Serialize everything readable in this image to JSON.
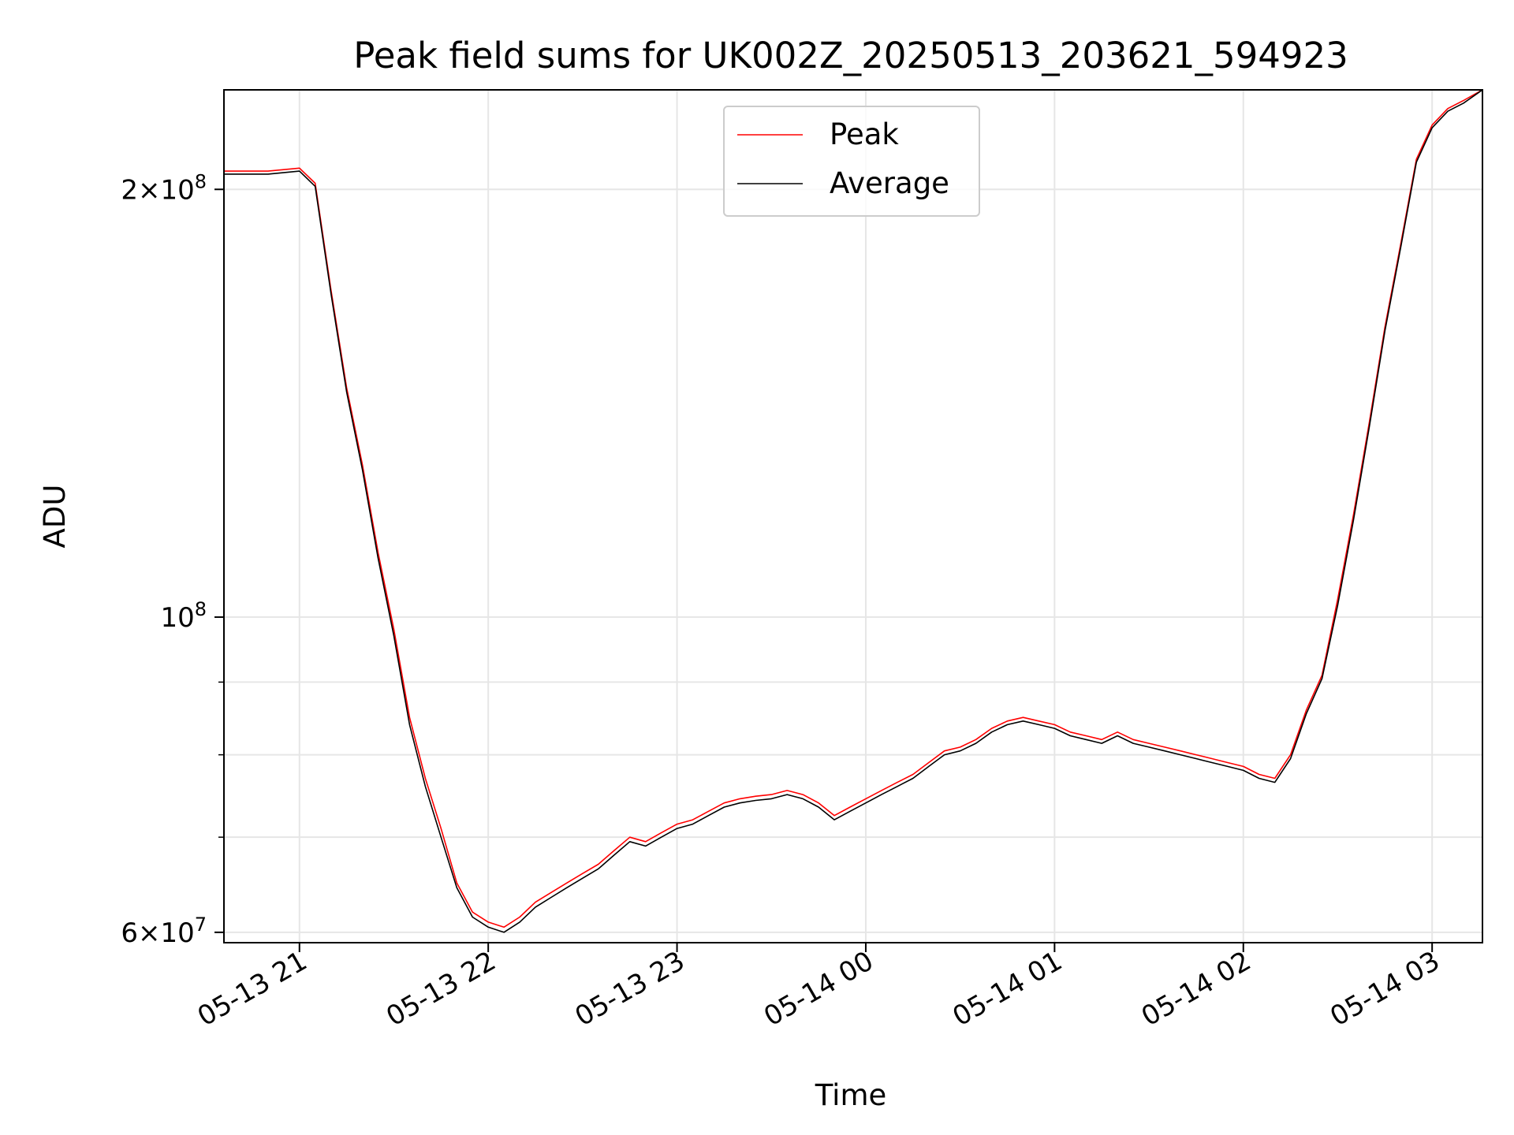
{
  "chart_data": {
    "type": "line",
    "title": "Peak field sums for UK002Z_20250513_203621_594923",
    "xlabel": "Time",
    "ylabel": "ADU",
    "yscale": "log",
    "ylim": [
      59000000,
      235000000
    ],
    "xlim": [
      "2025-05-13 20:36",
      "2025-05-14 03:16"
    ],
    "grid": true,
    "legend_position": "top-center",
    "x_ticks": [
      "2025-05-13 21:00",
      "2025-05-13 22:00",
      "2025-05-13 23:00",
      "2025-05-14 00:00",
      "2025-05-14 01:00",
      "2025-05-14 02:00",
      "2025-05-14 03:00"
    ],
    "x_tick_labels": [
      "05-13 21",
      "05-13 22",
      "05-13 23",
      "05-14 00",
      "05-14 01",
      "05-14 02",
      "05-14 03"
    ],
    "y_major_ticks": [
      60000000,
      100000000,
      200000000
    ],
    "y_minor_ticks": [
      70000000,
      80000000,
      90000000
    ],
    "series": [
      {
        "name": "Peak",
        "color": "#ff0000",
        "x": [
          "2025-05-13 20:36",
          "2025-05-13 20:50",
          "2025-05-13 21:00",
          "2025-05-13 21:05",
          "2025-05-13 21:10",
          "2025-05-13 21:15",
          "2025-05-13 21:20",
          "2025-05-13 21:25",
          "2025-05-13 21:30",
          "2025-05-13 21:35",
          "2025-05-13 21:40",
          "2025-05-13 21:45",
          "2025-05-13 21:50",
          "2025-05-13 21:55",
          "2025-05-13 22:00",
          "2025-05-13 22:05",
          "2025-05-13 22:10",
          "2025-05-13 22:15",
          "2025-05-13 22:20",
          "2025-05-13 22:25",
          "2025-05-13 22:30",
          "2025-05-13 22:35",
          "2025-05-13 22:40",
          "2025-05-13 22:45",
          "2025-05-13 22:50",
          "2025-05-13 22:55",
          "2025-05-13 23:00",
          "2025-05-13 23:05",
          "2025-05-13 23:10",
          "2025-05-13 23:15",
          "2025-05-13 23:20",
          "2025-05-13 23:25",
          "2025-05-13 23:30",
          "2025-05-13 23:35",
          "2025-05-13 23:40",
          "2025-05-13 23:45",
          "2025-05-13 23:50",
          "2025-05-13 23:55",
          "2025-05-14 00:00",
          "2025-05-14 00:05",
          "2025-05-14 00:10",
          "2025-05-14 00:15",
          "2025-05-14 00:20",
          "2025-05-14 00:25",
          "2025-05-14 00:30",
          "2025-05-14 00:35",
          "2025-05-14 00:40",
          "2025-05-14 00:45",
          "2025-05-14 00:50",
          "2025-05-14 00:55",
          "2025-05-14 01:00",
          "2025-05-14 01:05",
          "2025-05-14 01:10",
          "2025-05-14 01:15",
          "2025-05-14 01:20",
          "2025-05-14 01:25",
          "2025-05-14 01:30",
          "2025-05-14 01:35",
          "2025-05-14 01:40",
          "2025-05-14 01:45",
          "2025-05-14 01:50",
          "2025-05-14 01:55",
          "2025-05-14 02:00",
          "2025-05-14 02:05",
          "2025-05-14 02:10",
          "2025-05-14 02:15",
          "2025-05-14 02:20",
          "2025-05-14 02:25",
          "2025-05-14 02:30",
          "2025-05-14 02:35",
          "2025-05-14 02:40",
          "2025-05-14 02:45",
          "2025-05-14 02:50",
          "2025-05-14 02:55",
          "2025-05-14 03:00",
          "2025-05-14 03:05",
          "2025-05-14 03:10",
          "2025-05-14 03:16"
        ],
        "values": [
          206000000,
          206000000,
          207000000,
          202000000,
          170000000,
          145000000,
          128000000,
          111000000,
          98000000,
          85000000,
          77000000,
          71000000,
          65000000,
          62000000,
          61000000,
          60500000,
          61500000,
          63000000,
          64000000,
          65000000,
          66000000,
          67000000,
          68500000,
          70000000,
          69500000,
          70500000,
          71500000,
          72000000,
          73000000,
          74000000,
          74500000,
          74800000,
          75000000,
          75500000,
          75000000,
          74000000,
          72500000,
          73500000,
          74500000,
          75500000,
          76500000,
          77500000,
          79000000,
          80500000,
          81000000,
          82000000,
          83500000,
          84500000,
          85000000,
          84500000,
          84000000,
          83000000,
          82500000,
          82000000,
          83000000,
          82000000,
          81500000,
          81000000,
          80500000,
          80000000,
          79500000,
          79000000,
          78500000,
          77500000,
          77000000,
          80000000,
          86000000,
          91000000,
          103000000,
          118000000,
          137000000,
          160000000,
          183000000,
          210000000,
          222000000,
          228000000,
          231000000,
          235000000
        ]
      },
      {
        "name": "Average",
        "color": "#000000",
        "x": [
          "2025-05-13 20:36",
          "2025-05-13 20:50",
          "2025-05-13 21:00",
          "2025-05-13 21:05",
          "2025-05-13 21:10",
          "2025-05-13 21:15",
          "2025-05-13 21:20",
          "2025-05-13 21:25",
          "2025-05-13 21:30",
          "2025-05-13 21:35",
          "2025-05-13 21:40",
          "2025-05-13 21:45",
          "2025-05-13 21:50",
          "2025-05-13 21:55",
          "2025-05-13 22:00",
          "2025-05-13 22:05",
          "2025-05-13 22:10",
          "2025-05-13 22:15",
          "2025-05-13 22:20",
          "2025-05-13 22:25",
          "2025-05-13 22:30",
          "2025-05-13 22:35",
          "2025-05-13 22:40",
          "2025-05-13 22:45",
          "2025-05-13 22:50",
          "2025-05-13 22:55",
          "2025-05-13 23:00",
          "2025-05-13 23:05",
          "2025-05-13 23:10",
          "2025-05-13 23:15",
          "2025-05-13 23:20",
          "2025-05-13 23:25",
          "2025-05-13 23:30",
          "2025-05-13 23:35",
          "2025-05-13 23:40",
          "2025-05-13 23:45",
          "2025-05-13 23:50",
          "2025-05-13 23:55",
          "2025-05-14 00:00",
          "2025-05-14 00:05",
          "2025-05-14 00:10",
          "2025-05-14 00:15",
          "2025-05-14 00:20",
          "2025-05-14 00:25",
          "2025-05-14 00:30",
          "2025-05-14 00:35",
          "2025-05-14 00:40",
          "2025-05-14 00:45",
          "2025-05-14 00:50",
          "2025-05-14 00:55",
          "2025-05-14 01:00",
          "2025-05-14 01:05",
          "2025-05-14 01:10",
          "2025-05-14 01:15",
          "2025-05-14 01:20",
          "2025-05-14 01:25",
          "2025-05-14 01:30",
          "2025-05-14 01:35",
          "2025-05-14 01:40",
          "2025-05-14 01:45",
          "2025-05-14 01:50",
          "2025-05-14 01:55",
          "2025-05-14 02:00",
          "2025-05-14 02:05",
          "2025-05-14 02:10",
          "2025-05-14 02:15",
          "2025-05-14 02:20",
          "2025-05-14 02:25",
          "2025-05-14 02:30",
          "2025-05-14 02:35",
          "2025-05-14 02:40",
          "2025-05-14 02:45",
          "2025-05-14 02:50",
          "2025-05-14 02:55",
          "2025-05-14 03:00",
          "2025-05-14 03:05",
          "2025-05-14 03:10",
          "2025-05-14 03:16"
        ],
        "values": [
          205000000,
          205000000,
          206000000,
          201000000,
          169000000,
          144000000,
          127000000,
          110000000,
          97000000,
          84000000,
          76000000,
          70000000,
          64500000,
          61500000,
          60500000,
          60000000,
          61000000,
          62500000,
          63500000,
          64500000,
          65500000,
          66500000,
          68000000,
          69500000,
          69000000,
          70000000,
          71000000,
          71500000,
          72500000,
          73500000,
          74000000,
          74300000,
          74500000,
          75000000,
          74500000,
          73500000,
          72000000,
          73000000,
          74000000,
          75000000,
          76000000,
          77000000,
          78500000,
          80000000,
          80500000,
          81500000,
          83000000,
          84000000,
          84500000,
          84000000,
          83500000,
          82500000,
          82000000,
          81500000,
          82500000,
          81500000,
          81000000,
          80500000,
          80000000,
          79500000,
          79000000,
          78500000,
          78000000,
          77000000,
          76500000,
          79500000,
          85500000,
          90500000,
          102000000,
          117000000,
          136000000,
          159000000,
          182000000,
          209000000,
          221000000,
          227000000,
          230000000,
          235000000
        ]
      }
    ]
  }
}
